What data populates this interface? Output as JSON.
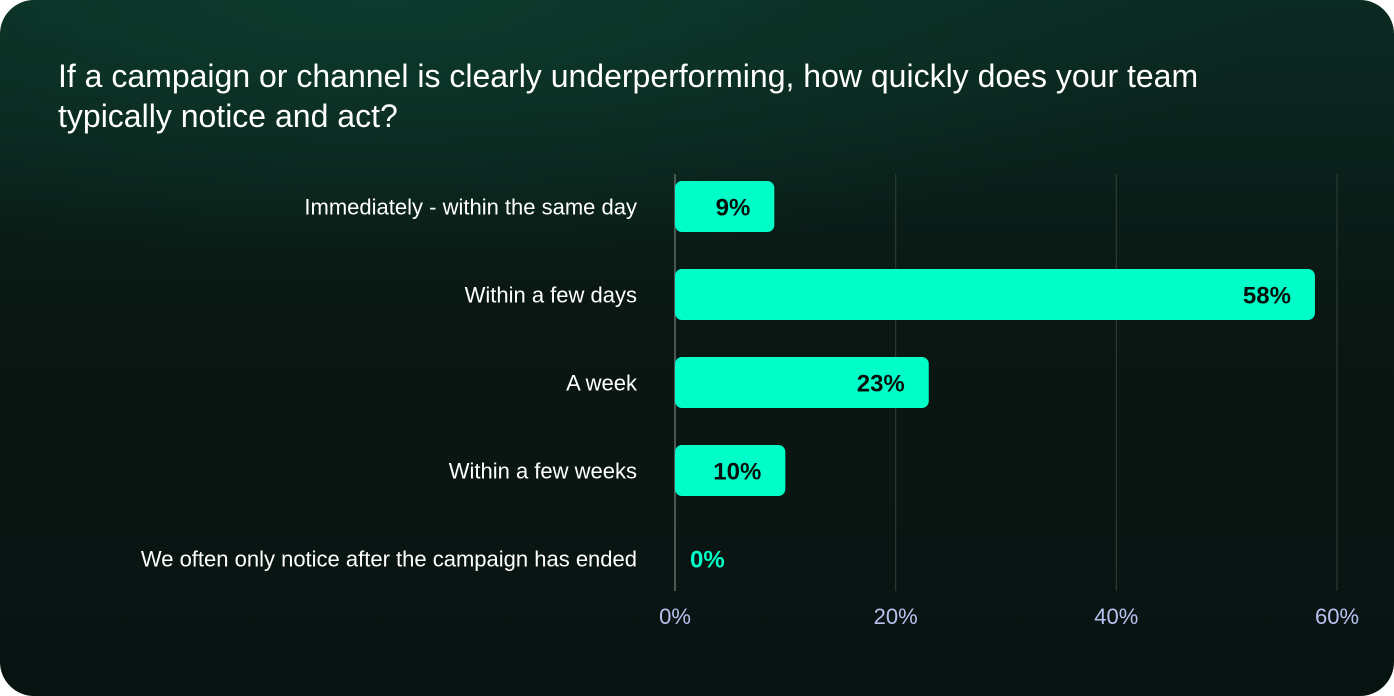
{
  "chart_data": {
    "type": "bar",
    "orientation": "horizontal",
    "title": "If a campaign or channel is clearly underperforming, how quickly does your team typically notice and act?",
    "categories": [
      "Immediately - within the same day",
      "Within a few days",
      "A week",
      "Within a few weeks",
      "We often only notice after the campaign has ended"
    ],
    "values": [
      9,
      58,
      23,
      10,
      0
    ],
    "value_labels": [
      "9%",
      "58%",
      "23%",
      "10%",
      "0%"
    ],
    "xlim": [
      0,
      60
    ],
    "ticks": [
      0,
      20,
      40,
      60
    ],
    "tick_labels": [
      "0%",
      "20%",
      "40%",
      "60%"
    ],
    "grid": true,
    "legend": "none",
    "colors": {
      "bar": "#00ffc8",
      "value_text_on_bar": "#06110d",
      "value_text_zero": "#00ffc8",
      "tick_text": "#b8c2f0",
      "grid": "#2c3a36"
    }
  }
}
